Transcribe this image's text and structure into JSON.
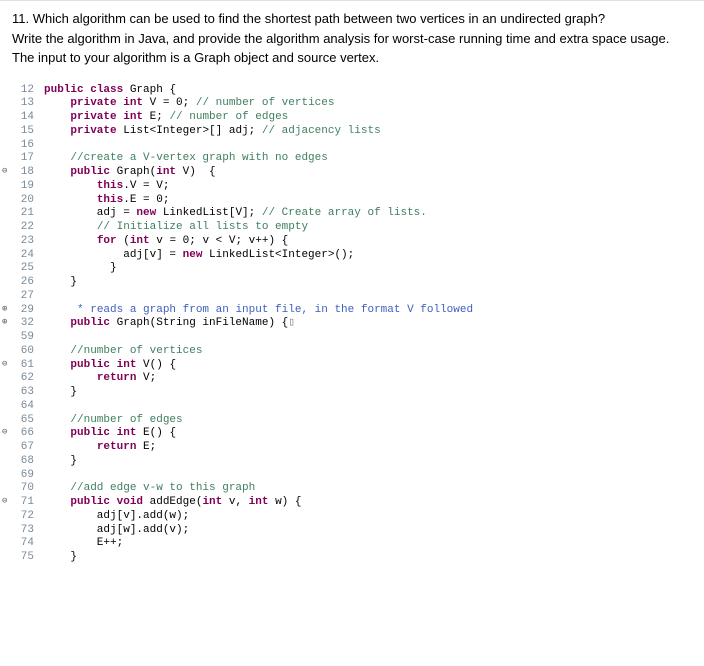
{
  "question": {
    "number": "11.",
    "text1": "Which algorithm can be used to find the shortest path between two vertices in an undirected graph?",
    "text2": "Write the algorithm in Java, and provide the algorithm analysis for worst-case running time and extra space usage.  The input to your algorithm is a Graph object and source vertex."
  },
  "colors": {
    "keyword": "#7f0055",
    "comment": "#3f7f5f",
    "javadoc": "#3f5fbf",
    "lineno": "#7a8a99",
    "text": "#000000",
    "background": "#ffffff"
  },
  "code": {
    "fontsize": 11,
    "fontfamily": "Monaco, Consolas, monospace",
    "lines": [
      {
        "n": "12",
        "tokens": [
          {
            "c": "kw",
            "t": "public"
          },
          {
            "c": "plain",
            "t": " "
          },
          {
            "c": "kw",
            "t": "class"
          },
          {
            "c": "plain",
            "t": " Graph {"
          }
        ]
      },
      {
        "n": "13",
        "tokens": [
          {
            "c": "plain",
            "t": "    "
          },
          {
            "c": "kw",
            "t": "private"
          },
          {
            "c": "plain",
            "t": " "
          },
          {
            "c": "kw",
            "t": "int"
          },
          {
            "c": "plain",
            "t": " V = 0; "
          },
          {
            "c": "cm",
            "t": "// number of vertices"
          }
        ]
      },
      {
        "n": "14",
        "tokens": [
          {
            "c": "plain",
            "t": "    "
          },
          {
            "c": "kw",
            "t": "private"
          },
          {
            "c": "plain",
            "t": " "
          },
          {
            "c": "kw",
            "t": "int"
          },
          {
            "c": "plain",
            "t": " E; "
          },
          {
            "c": "cm",
            "t": "// number of edges"
          }
        ]
      },
      {
        "n": "15",
        "tokens": [
          {
            "c": "plain",
            "t": "    "
          },
          {
            "c": "kw",
            "t": "private"
          },
          {
            "c": "plain",
            "t": " List<Integer>[] adj; "
          },
          {
            "c": "cm",
            "t": "// adjacency lists"
          }
        ]
      },
      {
        "n": "16",
        "tokens": [
          {
            "c": "plain",
            "t": ""
          }
        ]
      },
      {
        "n": "17",
        "tokens": [
          {
            "c": "plain",
            "t": "    "
          },
          {
            "c": "cm",
            "t": "//create a V-vertex graph with no edges"
          }
        ]
      },
      {
        "n": "18",
        "marker": "⊖",
        "tokens": [
          {
            "c": "plain",
            "t": "    "
          },
          {
            "c": "kw",
            "t": "public"
          },
          {
            "c": "plain",
            "t": " Graph("
          },
          {
            "c": "kw",
            "t": "int"
          },
          {
            "c": "plain",
            "t": " V)  {"
          }
        ]
      },
      {
        "n": "19",
        "tokens": [
          {
            "c": "plain",
            "t": "        "
          },
          {
            "c": "kw",
            "t": "this"
          },
          {
            "c": "plain",
            "t": ".V = V;"
          }
        ]
      },
      {
        "n": "20",
        "tokens": [
          {
            "c": "plain",
            "t": "        "
          },
          {
            "c": "kw",
            "t": "this"
          },
          {
            "c": "plain",
            "t": ".E = 0;"
          }
        ]
      },
      {
        "n": "21",
        "tokens": [
          {
            "c": "plain",
            "t": "        adj = "
          },
          {
            "c": "kw",
            "t": "new"
          },
          {
            "c": "plain",
            "t": " LinkedList[V]; "
          },
          {
            "c": "cm",
            "t": "// Create array of lists."
          }
        ]
      },
      {
        "n": "22",
        "tokens": [
          {
            "c": "plain",
            "t": "        "
          },
          {
            "c": "cm",
            "t": "// Initialize all lists to empty"
          }
        ]
      },
      {
        "n": "23",
        "tokens": [
          {
            "c": "plain",
            "t": "        "
          },
          {
            "c": "kw",
            "t": "for"
          },
          {
            "c": "plain",
            "t": " ("
          },
          {
            "c": "kw",
            "t": "int"
          },
          {
            "c": "plain",
            "t": " v = 0; v < V; v++) {"
          }
        ]
      },
      {
        "n": "24",
        "tokens": [
          {
            "c": "plain",
            "t": "            adj[v] = "
          },
          {
            "c": "kw",
            "t": "new"
          },
          {
            "c": "plain",
            "t": " LinkedList<Integer>();"
          }
        ]
      },
      {
        "n": "25",
        "tokens": [
          {
            "c": "plain",
            "t": "          }"
          }
        ]
      },
      {
        "n": "26",
        "tokens": [
          {
            "c": "plain",
            "t": "    }"
          }
        ]
      },
      {
        "n": "27",
        "tokens": [
          {
            "c": "plain",
            "t": ""
          }
        ]
      },
      {
        "n": "29",
        "marker": "⊕",
        "tokens": [
          {
            "c": "plain",
            "t": "     "
          },
          {
            "c": "jd",
            "t": "* reads a graph from an input file, in the format V followed"
          }
        ]
      },
      {
        "n": "32",
        "marker": "⊕",
        "tokens": [
          {
            "c": "plain",
            "t": "    "
          },
          {
            "c": "kw",
            "t": "public"
          },
          {
            "c": "plain",
            "t": " Graph(String inFileName) {"
          },
          {
            "c": "fold",
            "t": "▯"
          }
        ]
      },
      {
        "n": "59",
        "tokens": [
          {
            "c": "plain",
            "t": ""
          }
        ]
      },
      {
        "n": "60",
        "tokens": [
          {
            "c": "plain",
            "t": "    "
          },
          {
            "c": "cm",
            "t": "//number of vertices"
          }
        ]
      },
      {
        "n": "61",
        "marker": "⊖",
        "tokens": [
          {
            "c": "plain",
            "t": "    "
          },
          {
            "c": "kw",
            "t": "public"
          },
          {
            "c": "plain",
            "t": " "
          },
          {
            "c": "kw",
            "t": "int"
          },
          {
            "c": "plain",
            "t": " V() {"
          }
        ]
      },
      {
        "n": "62",
        "tokens": [
          {
            "c": "plain",
            "t": "        "
          },
          {
            "c": "kw",
            "t": "return"
          },
          {
            "c": "plain",
            "t": " V;"
          }
        ]
      },
      {
        "n": "63",
        "tokens": [
          {
            "c": "plain",
            "t": "    }"
          }
        ]
      },
      {
        "n": "64",
        "tokens": [
          {
            "c": "plain",
            "t": ""
          }
        ]
      },
      {
        "n": "65",
        "tokens": [
          {
            "c": "plain",
            "t": "    "
          },
          {
            "c": "cm",
            "t": "//number of edges"
          }
        ]
      },
      {
        "n": "66",
        "marker": "⊖",
        "tokens": [
          {
            "c": "plain",
            "t": "    "
          },
          {
            "c": "kw",
            "t": "public"
          },
          {
            "c": "plain",
            "t": " "
          },
          {
            "c": "kw",
            "t": "int"
          },
          {
            "c": "plain",
            "t": " E() {"
          }
        ]
      },
      {
        "n": "67",
        "tokens": [
          {
            "c": "plain",
            "t": "        "
          },
          {
            "c": "kw",
            "t": "return"
          },
          {
            "c": "plain",
            "t": " E;"
          }
        ]
      },
      {
        "n": "68",
        "tokens": [
          {
            "c": "plain",
            "t": "    }"
          }
        ]
      },
      {
        "n": "69",
        "tokens": [
          {
            "c": "plain",
            "t": ""
          }
        ]
      },
      {
        "n": "70",
        "tokens": [
          {
            "c": "plain",
            "t": "    "
          },
          {
            "c": "cm",
            "t": "//add edge v-w to this graph"
          }
        ]
      },
      {
        "n": "71",
        "marker": "⊖",
        "tokens": [
          {
            "c": "plain",
            "t": "    "
          },
          {
            "c": "kw",
            "t": "public"
          },
          {
            "c": "plain",
            "t": " "
          },
          {
            "c": "kw",
            "t": "void"
          },
          {
            "c": "plain",
            "t": " addEdge("
          },
          {
            "c": "kw",
            "t": "int"
          },
          {
            "c": "plain",
            "t": " v, "
          },
          {
            "c": "kw",
            "t": "int"
          },
          {
            "c": "plain",
            "t": " w) {"
          }
        ]
      },
      {
        "n": "72",
        "tokens": [
          {
            "c": "plain",
            "t": "        adj[v].add(w);"
          }
        ]
      },
      {
        "n": "73",
        "tokens": [
          {
            "c": "plain",
            "t": "        adj[w].add(v);"
          }
        ]
      },
      {
        "n": "74",
        "tokens": [
          {
            "c": "plain",
            "t": "        E++;"
          }
        ]
      },
      {
        "n": "75",
        "tokens": [
          {
            "c": "plain",
            "t": "    }"
          }
        ]
      }
    ]
  }
}
